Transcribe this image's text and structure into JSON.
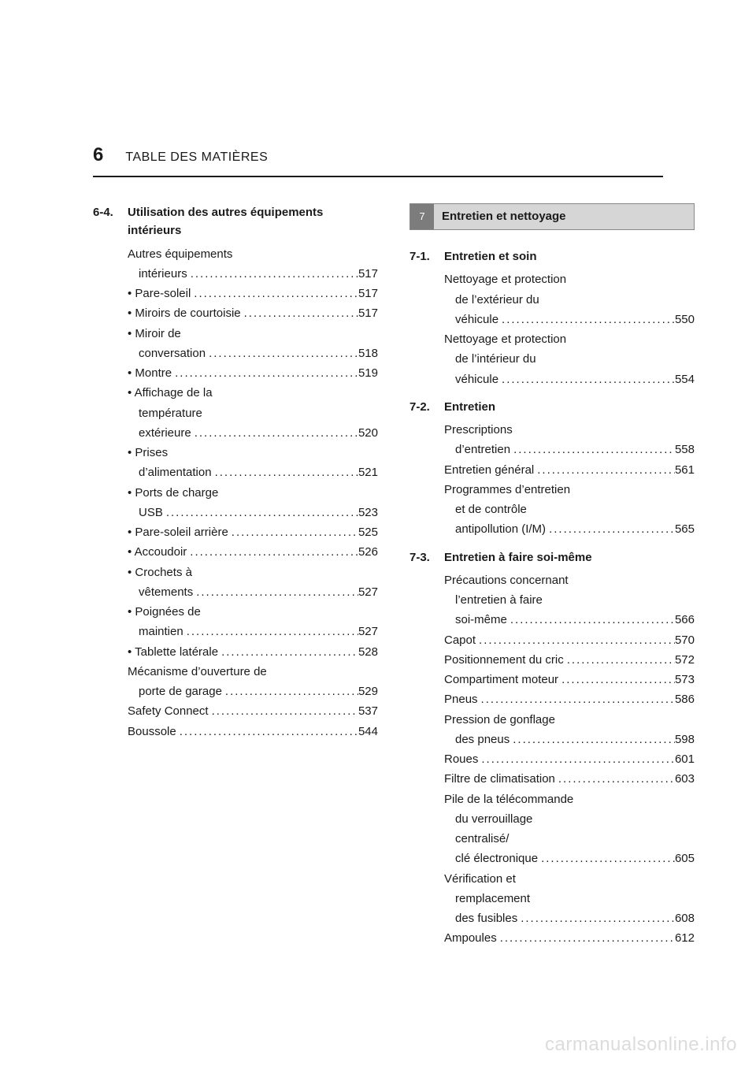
{
  "header": {
    "page_number": "6",
    "title": "TABLE DES MATIÈRES"
  },
  "left": {
    "section_num": "6-4.",
    "section_title": "Utilisation des autres équipements intérieurs",
    "entries": [
      {
        "label_lines": [
          "Autres équipements",
          "intérieurs"
        ],
        "page": "517",
        "indent": 0
      },
      {
        "label_lines": [
          "• Pare-soleil"
        ],
        "page": "517",
        "indent": 1
      },
      {
        "label_lines": [
          "• Miroirs de courtoisie"
        ],
        "page": "517",
        "indent": 1
      },
      {
        "label_lines": [
          "• Miroir de",
          "conversation"
        ],
        "page": "518",
        "indent": 1
      },
      {
        "label_lines": [
          "• Montre"
        ],
        "page": "519",
        "indent": 1
      },
      {
        "label_lines": [
          "• Affichage de la",
          "température",
          "extérieure"
        ],
        "page": "520",
        "indent": 1
      },
      {
        "label_lines": [
          "• Prises",
          "d’alimentation"
        ],
        "page": "521",
        "indent": 1
      },
      {
        "label_lines": [
          "• Ports de charge",
          "USB"
        ],
        "page": "523",
        "indent": 1
      },
      {
        "label_lines": [
          "• Pare-soleil arrière"
        ],
        "page": "525",
        "indent": 1
      },
      {
        "label_lines": [
          "• Accoudoir"
        ],
        "page": "526",
        "indent": 1
      },
      {
        "label_lines": [
          "• Crochets à",
          "vêtements"
        ],
        "page": "527",
        "indent": 1
      },
      {
        "label_lines": [
          "• Poignées de",
          "maintien"
        ],
        "page": "527",
        "indent": 1
      },
      {
        "label_lines": [
          "• Tablette latérale"
        ],
        "page": "528",
        "indent": 1
      },
      {
        "label_lines": [
          "Mécanisme d’ouverture de",
          "porte de garage"
        ],
        "page": "529",
        "indent": 0
      },
      {
        "label_lines": [
          "Safety Connect"
        ],
        "page": "537",
        "indent": 0
      },
      {
        "label_lines": [
          "Boussole"
        ],
        "page": "544",
        "indent": 0
      }
    ]
  },
  "right": {
    "chapter": {
      "num": "7",
      "label": "Entretien et nettoyage"
    },
    "sections": [
      {
        "num": "7-1.",
        "title": "Entretien et soin",
        "entries": [
          {
            "label_lines": [
              "Nettoyage et protection",
              "de l’extérieur du",
              "véhicule"
            ],
            "page": "550",
            "indent": 0
          },
          {
            "label_lines": [
              "Nettoyage et protection",
              "de l’intérieur du",
              "véhicule"
            ],
            "page": "554",
            "indent": 0
          }
        ]
      },
      {
        "num": "7-2.",
        "title": "Entretien",
        "entries": [
          {
            "label_lines": [
              "Prescriptions",
              "d’entretien"
            ],
            "page": "558",
            "indent": 0
          },
          {
            "label_lines": [
              "Entretien général"
            ],
            "page": "561",
            "indent": 0
          },
          {
            "label_lines": [
              "Programmes d’entretien",
              "et de contrôle",
              "antipollution (I/M)"
            ],
            "page": "565",
            "indent": 0
          }
        ]
      },
      {
        "num": "7-3.",
        "title": "Entretien à faire soi-même",
        "entries": [
          {
            "label_lines": [
              "Précautions concernant",
              "l’entretien à faire",
              "soi-même"
            ],
            "page": "566",
            "indent": 0
          },
          {
            "label_lines": [
              "Capot"
            ],
            "page": "570",
            "indent": 0
          },
          {
            "label_lines": [
              "Positionnement du cric"
            ],
            "page": "572",
            "indent": 0
          },
          {
            "label_lines": [
              "Compartiment moteur"
            ],
            "page": "573",
            "indent": 0
          },
          {
            "label_lines": [
              "Pneus"
            ],
            "page": "586",
            "indent": 0
          },
          {
            "label_lines": [
              "Pression de gonflage",
              "des pneus"
            ],
            "page": "598",
            "indent": 0
          },
          {
            "label_lines": [
              "Roues"
            ],
            "page": "601",
            "indent": 0
          },
          {
            "label_lines": [
              "Filtre de climatisation"
            ],
            "page": "603",
            "indent": 0
          },
          {
            "label_lines": [
              "Pile de la télécommande",
              "du verrouillage",
              "centralisé/",
              "clé électronique"
            ],
            "page": "605",
            "indent": 0
          },
          {
            "label_lines": [
              "Vérification et",
              "remplacement",
              "des fusibles"
            ],
            "page": "608",
            "indent": 0
          },
          {
            "label_lines": [
              "Ampoules"
            ],
            "page": "612",
            "indent": 0
          }
        ]
      }
    ]
  },
  "watermark": "carmanualsonline.info"
}
